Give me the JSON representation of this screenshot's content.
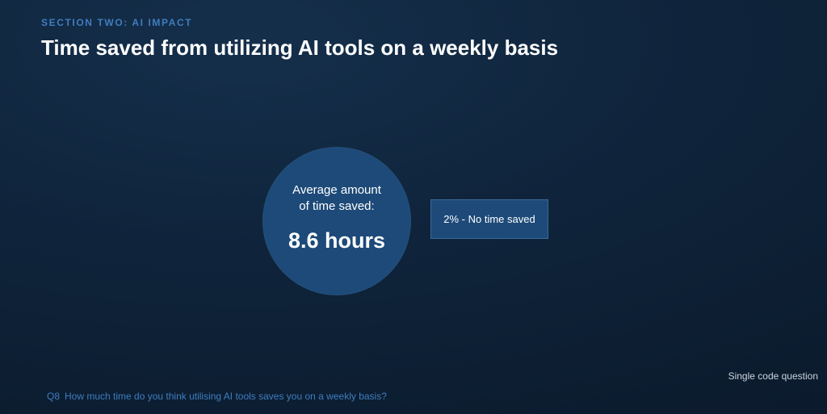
{
  "header": {
    "section_label": "SECTION TWO: AI IMPACT",
    "title": "Time saved from utilizing AI tools on a weekly basis"
  },
  "stat": {
    "caption_line1": "Average amount",
    "caption_line2": "of time saved:",
    "value": "8.6 hours"
  },
  "info_box": {
    "label": "2% - No time saved"
  },
  "footer": {
    "question_type": "Single code question",
    "question_number": "Q8",
    "question_text": "How much time do you think utilising AI tools saves you on a weekly basis?"
  },
  "colors": {
    "accent_blue": "#3f7dbf",
    "circle_fill": "#1d4a78",
    "background": "#0f243b"
  }
}
